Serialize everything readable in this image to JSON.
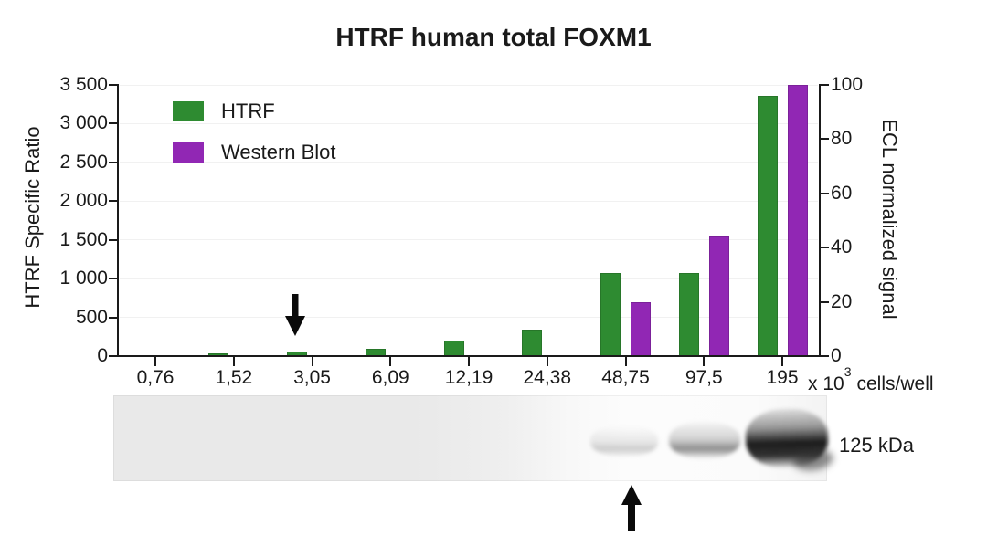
{
  "title": "HTRF human total FOXM1",
  "legend": [
    {
      "label": "HTRF",
      "color": "#2e8b31"
    },
    {
      "label": "Western Blot",
      "color": "#9127b4"
    }
  ],
  "chart_data": {
    "type": "bar",
    "title": "HTRF human total FOXM1",
    "categories": [
      "0,76",
      "1,52",
      "3,05",
      "6,09",
      "12,19",
      "24,38",
      "48,75",
      "97,5",
      "195"
    ],
    "x_unit": {
      "prefix": "x 10",
      "sup": "3",
      "suffix": "cells/well"
    },
    "left_axis": {
      "label": "HTRF Specific Ratio",
      "min": 0,
      "max": 3500,
      "tick_step": 500,
      "tick_labels": [
        "0",
        "500",
        "1 000",
        "1 500",
        "2 000",
        "2 500",
        "3 000",
        "3 500"
      ]
    },
    "right_axis": {
      "label": "ECL normalized signal",
      "min": 0,
      "max": 100,
      "tick_step": 20,
      "tick_labels": [
        "0",
        "20",
        "40",
        "60",
        "80",
        "100"
      ]
    },
    "series": [
      {
        "name": "HTRF",
        "axis": "left",
        "color": "#2e8b31",
        "values": [
          15,
          35,
          55,
          100,
          200,
          340,
          1070,
          1075,
          3360
        ]
      },
      {
        "name": "Western Blot",
        "axis": "right",
        "color": "#9127b4",
        "values": [
          null,
          null,
          null,
          null,
          null,
          null,
          20,
          44,
          100
        ]
      }
    ],
    "grid": "horizontal-light",
    "legend_position": "top-left-inside",
    "annotations": [
      {
        "type": "arrow-down",
        "target_category": "3,05",
        "location": "above-bar"
      },
      {
        "type": "arrow-up",
        "target_category": "48,75",
        "location": "below-blot"
      }
    ]
  },
  "blot": {
    "label": "125 kDa",
    "bands": [
      {
        "lane": "48,75",
        "intensity": "faint"
      },
      {
        "lane": "97,5",
        "intensity": "medium"
      },
      {
        "lane": "195",
        "intensity": "strong"
      }
    ]
  }
}
